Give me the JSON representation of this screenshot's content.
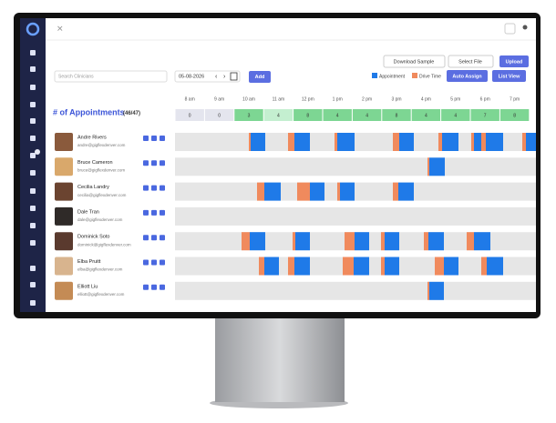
{
  "toolbar": {
    "download_sample": "Download Sample",
    "select_file": "Select File",
    "upload": "Upload",
    "search_placeholder": "Search Clinicians",
    "date": "05-08-2026",
    "add": "Add",
    "legend": [
      "Appointment",
      "Drive Time"
    ],
    "auto_assign": "Auto Assign",
    "list_view": "List View"
  },
  "schedule": {
    "title": "# of Appointments",
    "total": "(46/47)",
    "hours": [
      "8 am",
      "9 am",
      "10 am",
      "11 am",
      "12 pm",
      "1 pm",
      "2 pm",
      "3 pm",
      "4 pm",
      "5 pm",
      "6 pm",
      "7 pm"
    ],
    "counts": [
      0,
      0,
      3,
      4,
      8,
      4,
      4,
      8,
      4,
      4,
      7,
      8
    ]
  },
  "clinicians": [
    {
      "name": "Andre Rivers",
      "email": "andre@gigflexdenver.com"
    },
    {
      "name": "Bruce Cameron",
      "email": "bruce@gigflexdenver.com"
    },
    {
      "name": "Cecilia Landry",
      "email": "cecilia@gigflexdenver.com"
    },
    {
      "name": "Dale Tran",
      "email": "dale@gigflexdenver.com"
    },
    {
      "name": "Dominick Soto",
      "email": "dominick@gigflexdenver.com"
    },
    {
      "name": "Elba Pruitt",
      "email": "elba@gigflexdenver.com"
    },
    {
      "name": "Elliott Liu",
      "email": "elliott@gigflexdenver.com"
    }
  ]
}
